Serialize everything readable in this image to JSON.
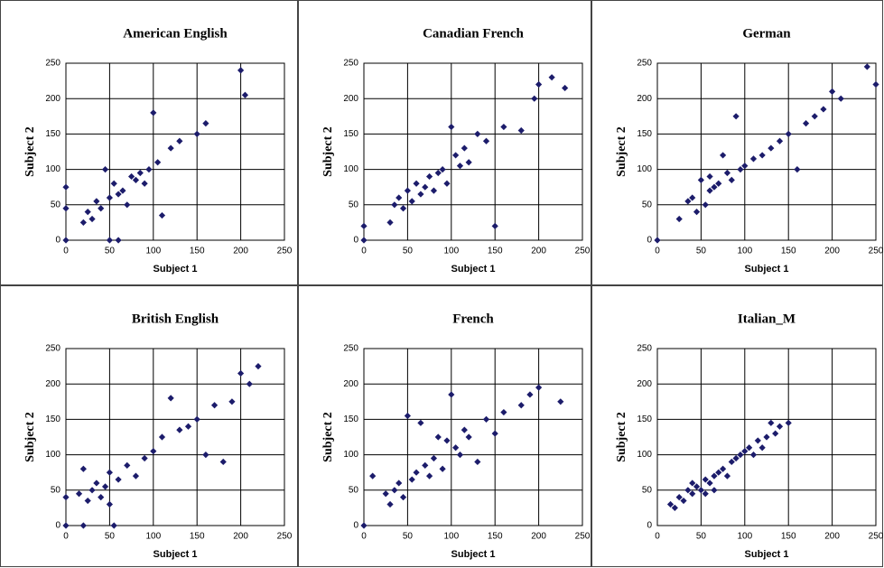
{
  "chart_data": [
    {
      "type": "scatter",
      "title": "American English",
      "x_label": "Subject 1",
      "y_label": "Subject 2",
      "color": "#1c1c6b",
      "grid": true,
      "xlim": [
        0,
        250
      ],
      "ylim": [
        0,
        250
      ],
      "xticks": [
        0,
        50,
        100,
        150,
        200,
        250
      ],
      "yticks": [
        0,
        50,
        100,
        150,
        200,
        250
      ],
      "x": [
        0,
        0,
        0,
        20,
        25,
        30,
        35,
        40,
        45,
        50,
        50,
        55,
        60,
        60,
        65,
        70,
        75,
        80,
        85,
        90,
        95,
        100,
        105,
        110,
        120,
        130,
        150,
        160,
        200,
        205
      ],
      "values": [
        75,
        45,
        0,
        25,
        40,
        30,
        55,
        45,
        100,
        60,
        0,
        80,
        65,
        0,
        70,
        50,
        90,
        85,
        95,
        80,
        100,
        180,
        110,
        35,
        130,
        140,
        150,
        165,
        240,
        205
      ]
    },
    {
      "type": "scatter",
      "title": "Canadian French",
      "x_label": "Subject 1",
      "y_label": "Subject 2",
      "color": "#1c1c6b",
      "grid": true,
      "xlim": [
        0,
        250
      ],
      "ylim": [
        0,
        250
      ],
      "xticks": [
        0,
        50,
        100,
        150,
        200,
        250
      ],
      "yticks": [
        0,
        50,
        100,
        150,
        200,
        250
      ],
      "x": [
        0,
        0,
        30,
        35,
        40,
        45,
        50,
        55,
        60,
        65,
        70,
        75,
        80,
        85,
        90,
        95,
        100,
        105,
        110,
        115,
        120,
        130,
        140,
        150,
        160,
        180,
        195,
        200,
        215,
        230
      ],
      "values": [
        20,
        0,
        25,
        50,
        60,
        45,
        70,
        55,
        80,
        65,
        75,
        90,
        70,
        95,
        100,
        80,
        160,
        120,
        105,
        130,
        110,
        150,
        140,
        20,
        160,
        155,
        200,
        220,
        230,
        215
      ]
    },
    {
      "type": "scatter",
      "title": "German",
      "x_label": "Subject 1",
      "y_label": "Subject 2",
      "color": "#1c1c6b",
      "grid": true,
      "xlim": [
        0,
        250
      ],
      "ylim": [
        0,
        250
      ],
      "xticks": [
        0,
        50,
        100,
        150,
        200,
        250
      ],
      "yticks": [
        0,
        50,
        100,
        150,
        200,
        250
      ],
      "x": [
        0,
        25,
        35,
        40,
        45,
        50,
        55,
        60,
        60,
        65,
        70,
        75,
        80,
        85,
        90,
        95,
        100,
        110,
        120,
        130,
        140,
        150,
        160,
        170,
        180,
        190,
        200,
        210,
        240,
        250
      ],
      "values": [
        0,
        30,
        55,
        60,
        40,
        85,
        50,
        90,
        70,
        75,
        80,
        120,
        95,
        85,
        175,
        100,
        105,
        115,
        120,
        130,
        140,
        150,
        100,
        165,
        175,
        185,
        210,
        200,
        245,
        220
      ]
    },
    {
      "type": "scatter",
      "title": "British English",
      "x_label": "Subject 1",
      "y_label": "Subject 2",
      "color": "#1c1c6b",
      "grid": true,
      "xlim": [
        0,
        250
      ],
      "ylim": [
        0,
        250
      ],
      "xticks": [
        0,
        50,
        100,
        150,
        200,
        250
      ],
      "yticks": [
        0,
        50,
        100,
        150,
        200,
        250
      ],
      "x": [
        0,
        0,
        15,
        20,
        20,
        25,
        30,
        35,
        40,
        45,
        50,
        50,
        55,
        60,
        70,
        80,
        90,
        100,
        110,
        120,
        130,
        140,
        150,
        160,
        170,
        180,
        190,
        200,
        210,
        220
      ],
      "values": [
        0,
        40,
        45,
        0,
        80,
        35,
        50,
        60,
        40,
        55,
        75,
        30,
        0,
        65,
        85,
        70,
        95,
        105,
        125,
        180,
        135,
        140,
        150,
        100,
        170,
        90,
        175,
        215,
        200,
        225
      ]
    },
    {
      "type": "scatter",
      "title": "French",
      "x_label": "Subject 1",
      "y_label": "Subject 2",
      "color": "#1c1c6b",
      "grid": true,
      "xlim": [
        0,
        250
      ],
      "ylim": [
        0,
        250
      ],
      "xticks": [
        0,
        50,
        100,
        150,
        200,
        250
      ],
      "yticks": [
        0,
        50,
        100,
        150,
        200,
        250
      ],
      "x": [
        0,
        10,
        25,
        30,
        35,
        40,
        45,
        50,
        55,
        60,
        65,
        70,
        75,
        80,
        85,
        90,
        95,
        100,
        105,
        110,
        115,
        120,
        130,
        140,
        150,
        160,
        180,
        190,
        200,
        225
      ],
      "values": [
        0,
        70,
        45,
        30,
        50,
        60,
        40,
        155,
        65,
        75,
        145,
        85,
        70,
        95,
        125,
        80,
        120,
        185,
        110,
        100,
        135,
        125,
        90,
        150,
        130,
        160,
        170,
        185,
        195,
        175
      ]
    },
    {
      "type": "scatter",
      "title": "Italian_M",
      "x_label": "Subject 1",
      "y_label": "Subject 2",
      "color": "#1c1c6b",
      "grid": true,
      "xlim": [
        0,
        250
      ],
      "ylim": [
        0,
        250
      ],
      "xticks": [
        0,
        50,
        100,
        150,
        200,
        250
      ],
      "yticks": [
        0,
        50,
        100,
        150,
        200,
        250
      ],
      "x": [
        15,
        20,
        25,
        30,
        35,
        40,
        40,
        45,
        50,
        55,
        55,
        60,
        65,
        65,
        70,
        75,
        80,
        85,
        90,
        95,
        100,
        105,
        110,
        115,
        120,
        125,
        130,
        135,
        140,
        150
      ],
      "values": [
        30,
        25,
        40,
        35,
        50,
        45,
        60,
        55,
        50,
        65,
        45,
        60,
        70,
        50,
        75,
        80,
        70,
        90,
        95,
        100,
        105,
        110,
        100,
        120,
        110,
        125,
        145,
        130,
        140,
        145
      ]
    }
  ]
}
